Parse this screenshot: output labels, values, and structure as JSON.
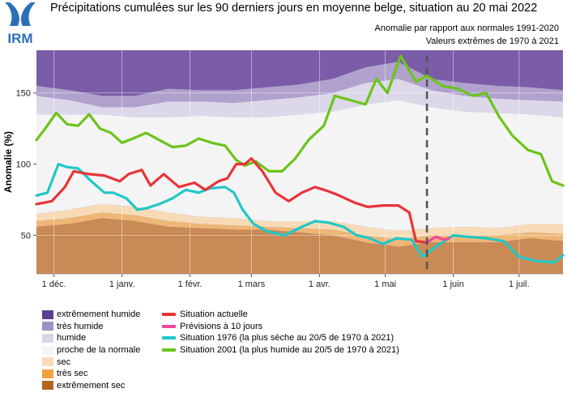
{
  "header": {
    "title": "Précipitations cumulées sur les 90 derniers jours en moyenne belge, situation au 20 mai 2022",
    "subtitle1": "Anomalie par rapport aux normales 1991-2020",
    "subtitle2": "Valeurs extrêmes de 1970 à 2021",
    "logo_text": "IRM"
  },
  "colors": {
    "extremely_wet": "#7a5ca8",
    "very_wet": "#b0a2cc",
    "wet": "#dcd8ea",
    "near_normal": "#f4f4f4",
    "dry": "#f7dbb6",
    "very_dry": "#eeb776",
    "extremely_dry": "#c98a55",
    "current": "#e8343a",
    "forecast": "#f0479d",
    "y1976": "#22c7c7",
    "y2001": "#6cc41a",
    "logo_blue": "#2a6fb8"
  },
  "chart_data": {
    "type": "area",
    "ylabel": "Anomalie (%)",
    "x_range": [
      "2021-11-23",
      "2022-07-21"
    ],
    "ylim": [
      23,
      180
    ],
    "yticks": [
      50,
      100,
      150
    ],
    "xticks": [
      {
        "label": "1 déc.",
        "date": "2021-12-01"
      },
      {
        "label": "1 janv.",
        "date": "2022-01-01"
      },
      {
        "label": "1 févr.",
        "date": "2022-02-01"
      },
      {
        "label": "1 mars",
        "date": "2022-03-01"
      },
      {
        "label": "1 avr.",
        "date": "2022-04-01"
      },
      {
        "label": "1 mai",
        "date": "2022-05-01"
      },
      {
        "label": "1 juin",
        "date": "2022-06-01"
      },
      {
        "label": "1 juil.",
        "date": "2022-07-01"
      }
    ],
    "current_date": "2022-05-20",
    "grid": true,
    "band_dates": [
      "2021-11-23",
      "2021-12-08",
      "2021-12-23",
      "2022-01-07",
      "2022-01-22",
      "2022-02-06",
      "2022-02-21",
      "2022-03-08",
      "2022-03-23",
      "2022-04-07",
      "2022-04-22",
      "2022-05-07",
      "2022-05-22",
      "2022-06-06",
      "2022-06-21",
      "2022-07-06",
      "2022-07-21"
    ],
    "bands": {
      "extreme_dry_top": [
        56,
        58,
        62,
        60,
        56,
        55,
        54,
        54,
        52,
        50,
        45,
        42,
        45,
        45,
        45,
        48,
        46
      ],
      "very_dry_top": [
        60,
        62,
        66,
        64,
        60,
        58,
        57,
        56,
        55,
        54,
        50,
        47,
        50,
        50,
        50,
        52,
        51
      ],
      "dry_top": [
        65,
        68,
        72,
        70,
        66,
        63,
        62,
        60,
        60,
        60,
        56,
        53,
        55,
        56,
        55,
        58,
        58
      ],
      "normal_top": [
        135,
        135,
        135,
        133,
        133,
        134,
        133,
        133,
        135,
        137,
        142,
        145,
        140,
        137,
        136,
        135,
        133
      ],
      "wet_top": [
        148,
        145,
        140,
        140,
        144,
        144,
        143,
        145,
        147,
        150,
        157,
        160,
        152,
        148,
        146,
        145,
        144
      ],
      "very_wet_top": [
        155,
        152,
        148,
        148,
        153,
        152,
        152,
        154,
        156,
        160,
        168,
        172,
        160,
        157,
        155,
        154,
        152
      ]
    },
    "legend": {
      "bands": [
        {
          "label": "extrêmement humide",
          "color": "#5b3e91"
        },
        {
          "label": "très humide",
          "color": "#a191c4"
        },
        {
          "label": "humide",
          "color": "#d9d5e9"
        },
        {
          "label": "proche de la normale",
          "color": "#f5f5f5"
        },
        {
          "label": "sec",
          "color": "#f9dbb8"
        },
        {
          "label": "très sec",
          "color": "#f2a23d"
        },
        {
          "label": "extrêmement sec",
          "color": "#b5631e"
        }
      ],
      "lines": [
        {
          "label": "Situation actuelle",
          "color": "#e8343a"
        },
        {
          "label": "Prévisions à 10 jours",
          "color": "#f0479d"
        },
        {
          "label": "Situation 1976 (la plus sèche au 20/5 de 1970 à 2021)",
          "color": "#22c7c7"
        },
        {
          "label": "Situation 2001 (la plus humide au 20/5 de 1970 à 2021)",
          "color": "#6cc41a"
        }
      ]
    },
    "series": [
      {
        "name": "Situation actuelle",
        "dates": [
          "2021-11-23",
          "2021-11-30",
          "2021-12-06",
          "2021-12-10",
          "2021-12-17",
          "2021-12-24",
          "2021-12-31",
          "2022-01-04",
          "2022-01-10",
          "2022-01-14",
          "2022-01-20",
          "2022-01-27",
          "2022-02-03",
          "2022-02-08",
          "2022-02-14",
          "2022-02-18",
          "2022-02-22",
          "2022-02-26",
          "2022-03-01",
          "2022-03-06",
          "2022-03-12",
          "2022-03-18",
          "2022-03-24",
          "2022-03-30",
          "2022-04-05",
          "2022-04-10",
          "2022-04-17",
          "2022-04-23",
          "2022-04-30",
          "2022-05-07",
          "2022-05-12",
          "2022-05-15",
          "2022-05-20"
        ],
        "values": [
          72,
          74,
          84,
          95,
          93,
          92,
          88,
          93,
          96,
          85,
          93,
          84,
          87,
          82,
          88,
          90,
          100,
          100,
          104,
          95,
          80,
          74,
          80,
          84,
          81,
          78,
          73,
          70,
          71,
          71,
          66,
          46,
          45
        ]
      },
      {
        "name": "Prévisions à 10 jours",
        "dates": [
          "2022-05-20",
          "2022-05-22",
          "2022-05-24",
          "2022-05-26",
          "2022-05-28",
          "2022-05-30"
        ],
        "values": [
          45,
          47,
          49,
          48,
          47,
          48
        ]
      },
      {
        "name": "Situation 1976",
        "dates": [
          "2021-11-23",
          "2021-11-28",
          "2021-12-03",
          "2021-12-07",
          "2021-12-12",
          "2021-12-18",
          "2021-12-24",
          "2021-12-28",
          "2022-01-03",
          "2022-01-08",
          "2022-01-12",
          "2022-01-18",
          "2022-01-24",
          "2022-01-30",
          "2022-02-05",
          "2022-02-10",
          "2022-02-17",
          "2022-02-21",
          "2022-02-25",
          "2022-03-02",
          "2022-03-08",
          "2022-03-16",
          "2022-03-24",
          "2022-03-30",
          "2022-04-05",
          "2022-04-12",
          "2022-04-18",
          "2022-04-24",
          "2022-04-30",
          "2022-05-06",
          "2022-05-13",
          "2022-05-18",
          "2022-05-25",
          "2022-06-01",
          "2022-06-08",
          "2022-06-16",
          "2022-06-24",
          "2022-07-01",
          "2022-07-09",
          "2022-07-17",
          "2022-07-21"
        ],
        "values": [
          78,
          80,
          100,
          98,
          97,
          88,
          80,
          80,
          76,
          68,
          69,
          72,
          76,
          82,
          80,
          83,
          84,
          80,
          68,
          58,
          53,
          50,
          56,
          60,
          59,
          56,
          50,
          48,
          44,
          48,
          47,
          35,
          43,
          50,
          49,
          48,
          46,
          35,
          32,
          31,
          36
        ]
      },
      {
        "name": "Situation 2001",
        "dates": [
          "2021-11-23",
          "2021-11-27",
          "2021-12-02",
          "2021-12-07",
          "2021-12-12",
          "2021-12-17",
          "2021-12-22",
          "2021-12-27",
          "2022-01-01",
          "2022-01-06",
          "2022-01-12",
          "2022-01-18",
          "2022-01-24",
          "2022-01-30",
          "2022-02-05",
          "2022-02-11",
          "2022-02-17",
          "2022-02-22",
          "2022-02-26",
          "2022-03-03",
          "2022-03-09",
          "2022-03-15",
          "2022-03-21",
          "2022-03-27",
          "2022-04-03",
          "2022-04-08",
          "2022-04-15",
          "2022-04-22",
          "2022-04-27",
          "2022-05-02",
          "2022-05-08",
          "2022-05-15",
          "2022-05-20",
          "2022-05-27",
          "2022-06-03",
          "2022-06-10",
          "2022-06-16",
          "2022-06-22",
          "2022-06-28",
          "2022-07-05",
          "2022-07-11",
          "2022-07-16",
          "2022-07-21"
        ],
        "values": [
          117,
          125,
          136,
          128,
          127,
          135,
          125,
          122,
          115,
          118,
          122,
          117,
          112,
          113,
          118,
          115,
          113,
          103,
          99,
          102,
          95,
          95,
          104,
          117,
          127,
          148,
          145,
          142,
          160,
          150,
          176,
          158,
          162,
          155,
          153,
          148,
          150,
          133,
          120,
          110,
          107,
          88,
          85
        ]
      }
    ]
  }
}
